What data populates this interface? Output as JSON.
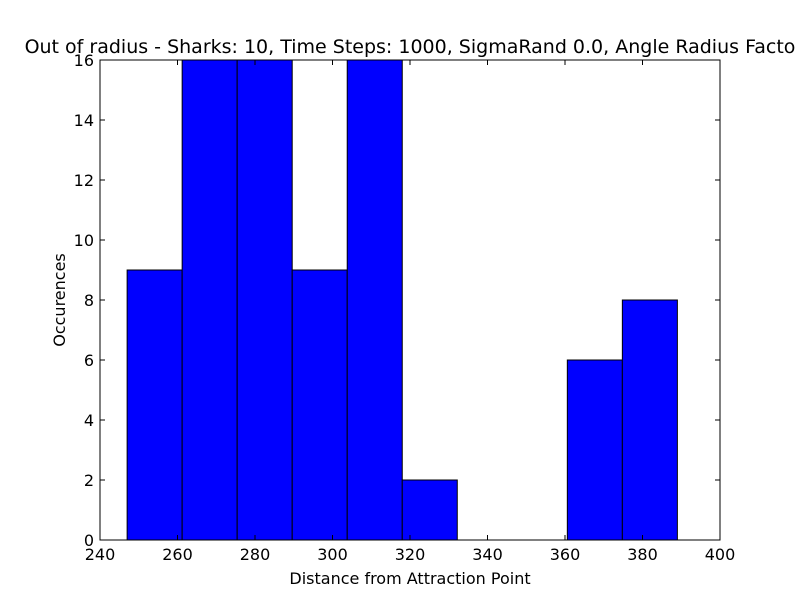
{
  "chart_data": {
    "type": "bar",
    "title": "Out of radius - Sharks: 10, Time Steps: 1000, SigmaRand 0.0, Angle Radius Facto",
    "xlabel": "Distance from Attraction Point",
    "ylabel": "Occurences",
    "xlim": [
      240,
      400
    ],
    "ylim": [
      0,
      16
    ],
    "xticks": [
      240,
      260,
      280,
      300,
      320,
      340,
      360,
      380,
      400
    ],
    "yticks": [
      0,
      2,
      4,
      6,
      8,
      10,
      12,
      14,
      16
    ],
    "bins": [
      {
        "x0": 247.0,
        "x1": 261.2,
        "value": 9
      },
      {
        "x0": 261.2,
        "x1": 275.4,
        "value": 16
      },
      {
        "x0": 275.4,
        "x1": 289.6,
        "value": 16
      },
      {
        "x0": 289.6,
        "x1": 303.8,
        "value": 9
      },
      {
        "x0": 303.8,
        "x1": 318.0,
        "value": 16
      },
      {
        "x0": 318.0,
        "x1": 332.2,
        "value": 2
      },
      {
        "x0": 332.2,
        "x1": 346.4,
        "value": 0
      },
      {
        "x0": 346.4,
        "x1": 360.6,
        "value": 0
      },
      {
        "x0": 360.6,
        "x1": 374.8,
        "value": 6
      },
      {
        "x0": 374.8,
        "x1": 389.0,
        "value": 8
      }
    ],
    "bar_color": "#0000ff",
    "edge_color": "#000000",
    "grid": false,
    "legend": "none"
  }
}
